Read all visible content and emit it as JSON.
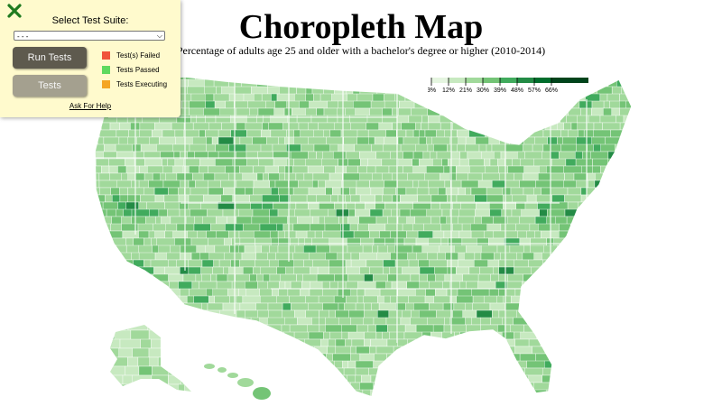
{
  "map": {
    "title": "Choropleth Map",
    "subtitle": "Percentage of adults age 25 and older with a bachelor's degree or higher (2010-2014)",
    "legend": {
      "ticks": [
        "3%",
        "12%",
        "21%",
        "30%",
        "39%",
        "48%",
        "57%",
        "66%"
      ],
      "colors": [
        "#e5f5e0",
        "#c7e9c0",
        "#a1d99b",
        "#74c476",
        "#41ab5d",
        "#238b45",
        "#006d2c",
        "#00441b"
      ]
    }
  },
  "test_panel": {
    "title": "Select Test Suite:",
    "selected_option": "- - -",
    "run_button_label": "Run Tests",
    "tests_button_label": "Tests",
    "keys": [
      {
        "label": "Test(s) Failed",
        "color": "#f0533b"
      },
      {
        "label": "Tests Passed",
        "color": "#5ed95e"
      },
      {
        "label": "Tests Executing",
        "color": "#f5a623"
      }
    ],
    "help_link": "Ask For Help"
  }
}
